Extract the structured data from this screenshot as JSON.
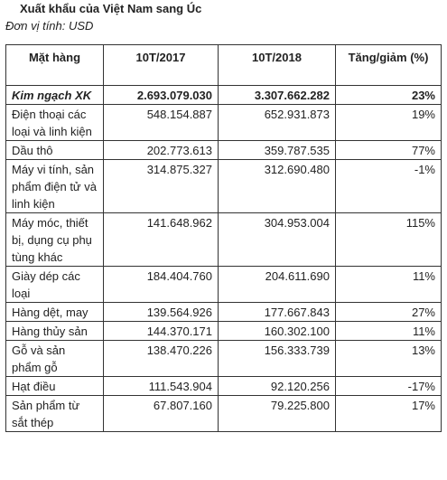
{
  "title": "Xuất khẩu của Việt Nam sang Úc",
  "subtitle": "Đơn vị tính: USD",
  "table": {
    "headers": [
      "Mặt hàng",
      "10T/2017",
      "10T/2018",
      "Tăng/giảm (%)"
    ],
    "rows": [
      {
        "item": "Kim ngạch XK",
        "y2017": "2.693.079.030",
        "y2018": "3.307.662.282",
        "change": "23%"
      },
      {
        "item": "Điện thoại các loại và linh kiện",
        "y2017": "548.154.887",
        "y2018": "652.931.873",
        "change": "19%"
      },
      {
        "item": "Dầu thô",
        "y2017": "202.773.613",
        "y2018": "359.787.535",
        "change": "77%"
      },
      {
        "item": "Máy vi tính, sản phẩm điện tử và linh kiện",
        "y2017": "314.875.327",
        "y2018": "312.690.480",
        "change": "-1%"
      },
      {
        "item": "Máy móc, thiết bị, dụng cụ phụ tùng khác",
        "y2017": "141.648.962",
        "y2018": "304.953.004",
        "change": "115%"
      },
      {
        "item": "Giày dép các loại",
        "y2017": "184.404.760",
        "y2018": "204.611.690",
        "change": "11%"
      },
      {
        "item": "Hàng dệt, may",
        "y2017": "139.564.926",
        "y2018": "177.667.843",
        "change": "27%"
      },
      {
        "item": "Hàng thủy sản",
        "y2017": "144.370.171",
        "y2018": "160.302.100",
        "change": "11%"
      },
      {
        "item": "Gỗ và sản phẩm gỗ",
        "y2017": "138.470.226",
        "y2018": "156.333.739",
        "change": "13%"
      },
      {
        "item": "Hạt điều",
        "y2017": "111.543.904",
        "y2018": "92.120.256",
        "change": "-17%"
      },
      {
        "item": "Sản phẩm từ sắt thép",
        "y2017": "67.807.160",
        "y2018": "79.225.800",
        "change": "17%"
      }
    ]
  }
}
